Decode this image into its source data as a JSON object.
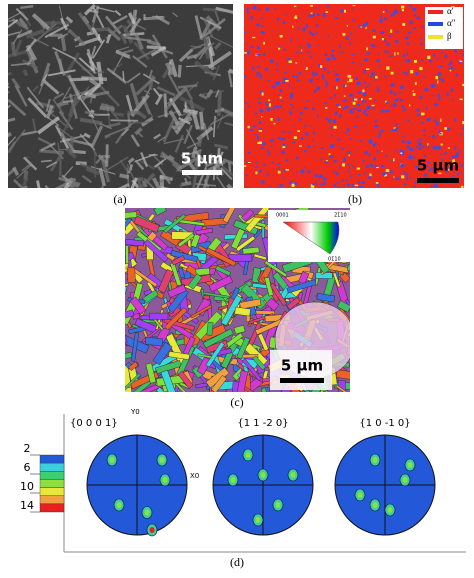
{
  "panel_a": {
    "label": "(a)",
    "scale_bar": "5 µm"
  },
  "panel_b": {
    "label": "(b)",
    "scale_bar": "5 µm",
    "legend": [
      "α′",
      "α″",
      "β"
    ]
  },
  "panel_c": {
    "label": "(c)",
    "scale_bar": "5 µm",
    "ipf_key": [
      "0001",
      "2̄1̄10",
      "01̄10"
    ]
  },
  "panel_d": {
    "label": "(d)",
    "pole_figures": [
      "{0 0 0 1}",
      "{1 1 -2 0}",
      "{1 0 -1 0}"
    ],
    "axis_y": "Y0",
    "axis_x": "X0",
    "colorbar": [
      2,
      6,
      10,
      14
    ]
  }
}
